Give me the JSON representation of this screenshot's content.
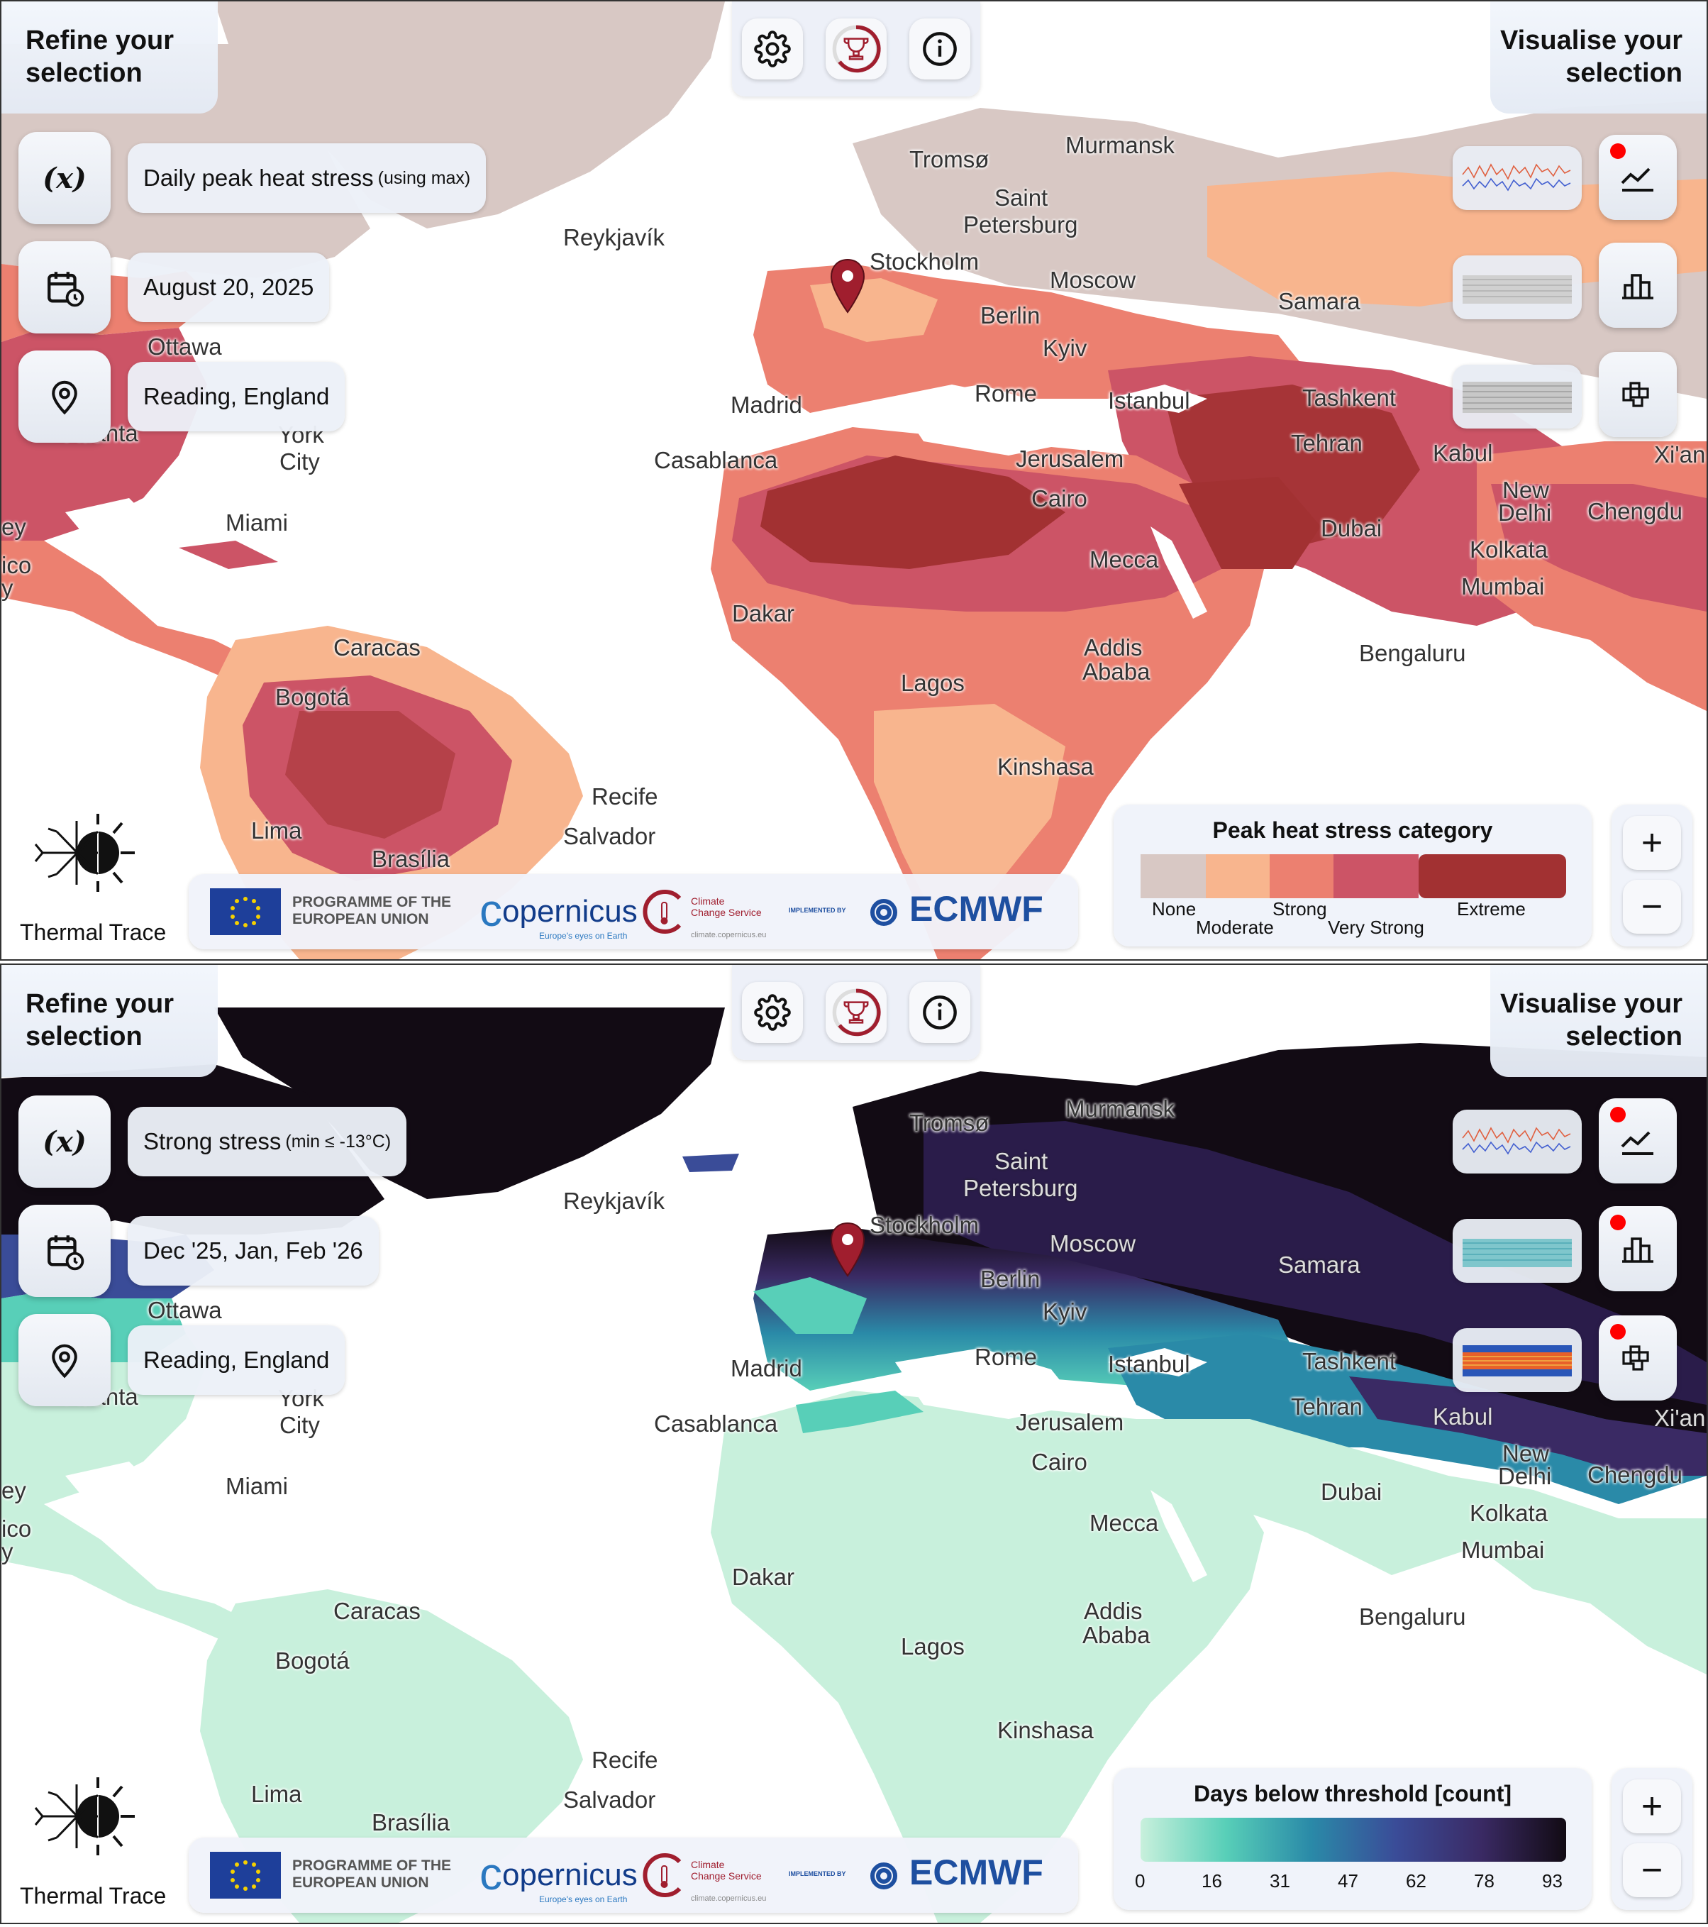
{
  "common": {
    "refine_line1": "Refine your",
    "refine_line2": "selection",
    "visualise_line1": "Visualise your",
    "visualise_line2": "selection",
    "settings_icon": "gear-icon",
    "trophy_icon": "trophy-icon",
    "info_icon": "info-icon",
    "variable_icon": "variable-x-icon",
    "calendar_icon": "calendar-clock-icon",
    "location_icon": "location-pin-icon",
    "logo_text": "Thermal Trace",
    "funder_eu_line1": "PROGRAMME OF THE",
    "funder_eu_line2": "EUROPEAN UNION",
    "funder_copernicus": "opernicus",
    "funder_copernicus_tag": "Europe's eyes on Earth",
    "funder_c3s_line1": "Climate",
    "funder_c3s_line2": "Change Service",
    "funder_c3s_url": "climate.copernicus.eu",
    "funder_implemented": "IMPLEMENTED BY",
    "funder_ecmwf": "ECMWF",
    "zoom_in": "+",
    "zoom_out": "−"
  },
  "cities": [
    "Tromsø",
    "Murmansk",
    "Saint",
    "Petersburg",
    "Reykjavík",
    "Stockholm",
    "Moscow",
    "Samara",
    "Berlin",
    "Kyiv",
    "Ottawa",
    "Madrid",
    "Rome",
    "Istanbul",
    "Tashkent",
    "Xi'an",
    "Atlanta",
    "York",
    "City",
    "Casablanca",
    "Jerusalem",
    "Tehran",
    "Kabul",
    "Miami",
    "Cairo",
    "New",
    "Delhi",
    "Chengdu",
    "Dubai",
    "Kolkata",
    "Mecca",
    "Mumbai",
    "Dakar",
    "Addis",
    "Ababa",
    "Caracas",
    "Bengaluru",
    "Bogotá",
    "Lagos",
    "Kinshasa",
    "Recife",
    "Lima",
    "Salvador",
    "Brasília",
    "ey",
    "ico",
    "y"
  ],
  "panel1": {
    "variable": "Daily peak heat stress",
    "variable_suffix": "(using max)",
    "date": "August 20, 2025",
    "location": "Reading, England",
    "legend_title": "Peak heat stress category",
    "legend_labels": [
      "None",
      "Moderate",
      "Strong",
      "Very Strong",
      "Extreme"
    ],
    "legend_colors": [
      "#d8c8c4",
      "#f8b58e",
      "#ec8070",
      "#cc5466",
      "#a23132"
    ],
    "active_dots": [
      "line"
    ]
  },
  "panel2": {
    "variable": "Strong stress",
    "variable_suffix": "(min ≤ -13°C)",
    "date": "Dec '25, Jan, Feb '26",
    "location": "Reading, England",
    "legend_title": "Days below threshold [count]",
    "legend_ticks": [
      "0",
      "16",
      "31",
      "47",
      "62",
      "78",
      "93"
    ],
    "legend_colors": [
      "#c8f0dc",
      "#58cfb8",
      "#2a8aa8",
      "#3a4c98",
      "#3a2a64",
      "#120b14"
    ],
    "active_dots": [
      "line",
      "bar",
      "grid"
    ]
  }
}
